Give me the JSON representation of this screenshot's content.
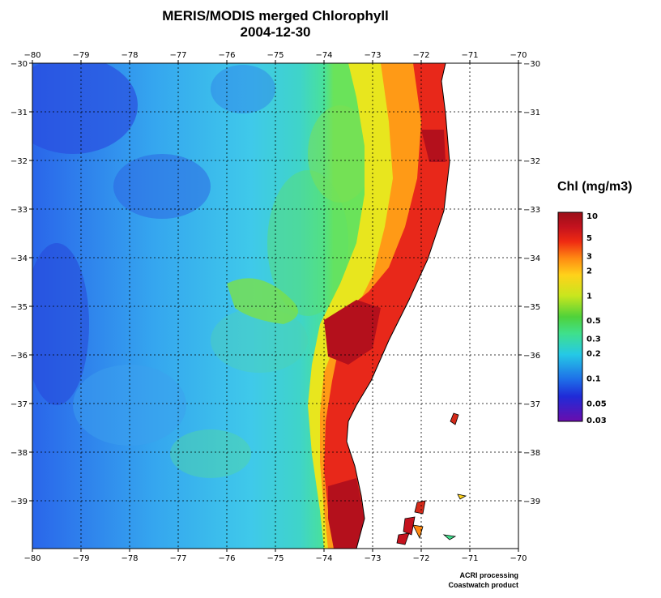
{
  "title_line1": "MERIS/MODIS merged Chlorophyll",
  "title_line2": "2004-12-30",
  "map": {
    "lon_range": [
      -80,
      -70
    ],
    "lat_range": [
      -40,
      -30
    ],
    "lon_ticks": [
      "−80",
      "−79",
      "−78",
      "−77",
      "−76",
      "−75",
      "−74",
      "−73",
      "−72",
      "−71",
      "−70"
    ],
    "lat_ticks": [
      "−30",
      "−31",
      "−32",
      "−33",
      "−34",
      "−35",
      "−36",
      "−37",
      "−38",
      "−39"
    ],
    "grid": "dotted"
  },
  "colorbar": {
    "title": "Chl (mg/m3)",
    "labels": [
      "10",
      "5",
      "3",
      "2",
      "1",
      "0.5",
      "0.3",
      "0.2",
      "0.1",
      "0.05",
      "0.03"
    ],
    "colors": [
      "#6a0dad",
      "#1f2bd8",
      "#1e6ee8",
      "#25c9e6",
      "#3fe08c",
      "#4fd23a",
      "#c8e61e",
      "#ffd21a",
      "#ff8a12",
      "#ef2a12",
      "#c4121e",
      "#9a0f18"
    ]
  },
  "credit_line1": "ACRI processing",
  "credit_line2": "Coastwatch product"
}
